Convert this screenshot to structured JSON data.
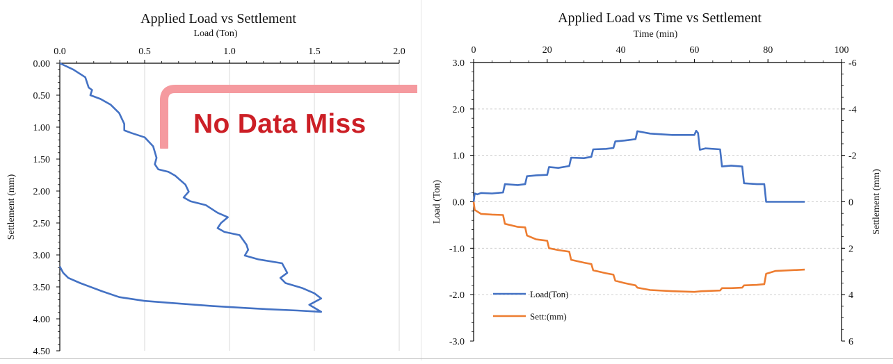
{
  "chart_data": [
    {
      "type": "line",
      "title": "Applied Load vs Settlement",
      "xlabel": "Load (Ton)",
      "ylabel": "Settlement  (mm)",
      "x_axis_position": "top",
      "y_axis_reversed": true,
      "xlim": [
        0,
        2
      ],
      "ylim": [
        0,
        4.5
      ],
      "x_ticks": [
        "0.0",
        "0.5",
        "1.0",
        "1.5",
        "2.0"
      ],
      "y_ticks": [
        "0.00",
        "0.50",
        "1.00",
        "1.50",
        "2.00",
        "2.50",
        "3.00",
        "3.50",
        "4.00",
        "4.50"
      ],
      "grid": "vertical",
      "colors": {
        "series": "#4472c4"
      },
      "series": [
        {
          "points": [
            [
              0,
              0
            ],
            [
              0.08,
              0.1
            ],
            [
              0.15,
              0.22
            ],
            [
              0.17,
              0.38
            ],
            [
              0.19,
              0.42
            ],
            [
              0.18,
              0.5
            ],
            [
              0.24,
              0.56
            ],
            [
              0.3,
              0.65
            ],
            [
              0.35,
              0.78
            ],
            [
              0.38,
              0.95
            ],
            [
              0.38,
              1.05
            ],
            [
              0.42,
              1.09
            ],
            [
              0.5,
              1.16
            ],
            [
              0.55,
              1.3
            ],
            [
              0.57,
              1.48
            ],
            [
              0.56,
              1.58
            ],
            [
              0.58,
              1.66
            ],
            [
              0.64,
              1.7
            ],
            [
              0.68,
              1.76
            ],
            [
              0.74,
              1.9
            ],
            [
              0.76,
              2.01
            ],
            [
              0.73,
              2.1
            ],
            [
              0.77,
              2.16
            ],
            [
              0.86,
              2.22
            ],
            [
              0.93,
              2.34
            ],
            [
              0.99,
              2.41
            ],
            [
              0.95,
              2.5
            ],
            [
              0.93,
              2.58
            ],
            [
              0.97,
              2.64
            ],
            [
              1.06,
              2.69
            ],
            [
              1.1,
              2.84
            ],
            [
              1.11,
              2.92
            ],
            [
              1.09,
              3.01
            ],
            [
              1.17,
              3.07
            ],
            [
              1.31,
              3.13
            ],
            [
              1.34,
              3.28
            ],
            [
              1.3,
              3.36
            ],
            [
              1.33,
              3.44
            ],
            [
              1.43,
              3.52
            ],
            [
              1.5,
              3.6
            ],
            [
              1.54,
              3.68
            ],
            [
              1.47,
              3.78
            ],
            [
              1.54,
              3.89
            ],
            [
              1.4,
              3.87
            ],
            [
              1.23,
              3.85
            ],
            [
              1.1,
              3.83
            ],
            [
              0.9,
              3.8
            ],
            [
              0.7,
              3.76
            ],
            [
              0.5,
              3.72
            ],
            [
              0.35,
              3.66
            ],
            [
              0.25,
              3.57
            ],
            [
              0.12,
              3.44
            ],
            [
              0.05,
              3.36
            ],
            [
              0.02,
              3.28
            ],
            [
              0,
              3.18
            ]
          ]
        }
      ]
    },
    {
      "type": "line",
      "title": "Applied Load vs Time vs Settlement",
      "xlabel": "Time (min)",
      "ylabel": "Load  (Ton)",
      "y2label": "Settlement  (mm)",
      "x_axis_position": "top",
      "xlim": [
        0,
        100
      ],
      "ylim": [
        -3,
        3
      ],
      "y2lim": [
        6,
        -6
      ],
      "x_ticks": [
        "0",
        "20",
        "40",
        "60",
        "80",
        "100"
      ],
      "y_ticks": [
        "3.0",
        "2.0",
        "1.0",
        "0.0",
        "-1.0",
        "-2.0",
        "-3.0"
      ],
      "y2_ticks": [
        "-6",
        "-4",
        "-2",
        "0",
        "2",
        "4",
        "6"
      ],
      "grid": "horizontal dashed",
      "legend_position": "bottom-left",
      "series": [
        {
          "name": "Load(Ton)",
          "color": "#4472c4",
          "axis": "left",
          "points": [
            [
              0,
              0.0
            ],
            [
              0.3,
              0.18
            ],
            [
              1,
              0.16
            ],
            [
              2,
              0.19
            ],
            [
              5,
              0.18
            ],
            [
              8,
              0.2
            ],
            [
              8.5,
              0.38
            ],
            [
              12,
              0.36
            ],
            [
              14,
              0.38
            ],
            [
              14.5,
              0.55
            ],
            [
              17,
              0.57
            ],
            [
              20,
              0.58
            ],
            [
              20.5,
              0.75
            ],
            [
              23,
              0.73
            ],
            [
              26,
              0.77
            ],
            [
              26.5,
              0.95
            ],
            [
              30,
              0.94
            ],
            [
              32,
              0.97
            ],
            [
              32.5,
              1.13
            ],
            [
              36,
              1.14
            ],
            [
              38,
              1.16
            ],
            [
              38.5,
              1.3
            ],
            [
              41,
              1.32
            ],
            [
              44,
              1.35
            ],
            [
              44.5,
              1.52
            ],
            [
              48,
              1.47
            ],
            [
              54,
              1.44
            ],
            [
              60,
              1.44
            ],
            [
              60.5,
              1.53
            ],
            [
              61,
              1.48
            ],
            [
              61.5,
              1.12
            ],
            [
              63,
              1.15
            ],
            [
              67,
              1.13
            ],
            [
              67.5,
              0.76
            ],
            [
              70,
              0.78
            ],
            [
              73,
              0.76
            ],
            [
              73.5,
              0.4
            ],
            [
              77,
              0.38
            ],
            [
              79,
              0.38
            ],
            [
              79.5,
              0.0
            ],
            [
              90,
              0.0
            ]
          ]
        },
        {
          "name": "Sett:(mm)",
          "color": "#ed7d31",
          "axis": "right",
          "points": [
            [
              0,
              0.0
            ],
            [
              0.3,
              0.35
            ],
            [
              2,
              0.52
            ],
            [
              5,
              0.55
            ],
            [
              8,
              0.57
            ],
            [
              8.5,
              0.95
            ],
            [
              12,
              1.08
            ],
            [
              14,
              1.1
            ],
            [
              14.5,
              1.45
            ],
            [
              17,
              1.62
            ],
            [
              20,
              1.68
            ],
            [
              20.5,
              2.0
            ],
            [
              23,
              2.08
            ],
            [
              26,
              2.15
            ],
            [
              26.5,
              2.5
            ],
            [
              30,
              2.62
            ],
            [
              32,
              2.68
            ],
            [
              32.5,
              2.95
            ],
            [
              36,
              3.08
            ],
            [
              38,
              3.14
            ],
            [
              38.5,
              3.4
            ],
            [
              41,
              3.5
            ],
            [
              44,
              3.6
            ],
            [
              44.5,
              3.7
            ],
            [
              48,
              3.8
            ],
            [
              54,
              3.85
            ],
            [
              60,
              3.88
            ],
            [
              62,
              3.85
            ],
            [
              67,
              3.82
            ],
            [
              67.5,
              3.72
            ],
            [
              70,
              3.72
            ],
            [
              73,
              3.7
            ],
            [
              73.5,
              3.6
            ],
            [
              77,
              3.58
            ],
            [
              79,
              3.55
            ],
            [
              79.5,
              3.1
            ],
            [
              82,
              2.98
            ],
            [
              90,
              2.92
            ]
          ]
        }
      ]
    }
  ],
  "overlay": {
    "text": "No Data Miss",
    "text_color": "#cc1f26",
    "frame_color": "#f59a9f"
  }
}
